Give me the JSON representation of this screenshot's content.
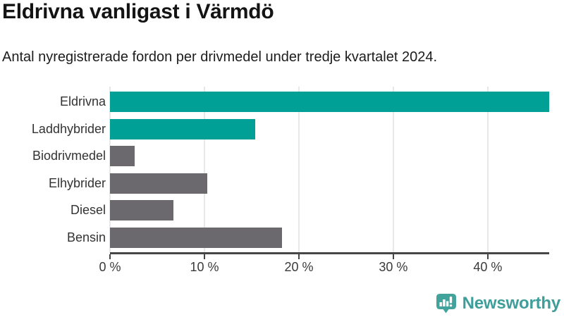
{
  "header": {
    "title": "Eldrivna vanligast i Värmdö",
    "subtitle": "Antal nyregistrerade fordon per drivmedel under tredje kvartalet 2024."
  },
  "chart_data": {
    "type": "bar",
    "orientation": "horizontal",
    "title": "Eldrivna vanligast i Värmdö",
    "subtitle": "Antal nyregistrerade fordon per drivmedel under tredje kvartalet 2024.",
    "categories": [
      "Eldrivna",
      "Laddhybrider",
      "Biodrivmedel",
      "Elhybrider",
      "Diesel",
      "Bensin"
    ],
    "values": [
      46.5,
      15.4,
      2.6,
      10.3,
      6.7,
      18.2
    ],
    "unit": "%",
    "xlim": [
      0,
      46.5
    ],
    "x_ticks": [
      0,
      10,
      20,
      30,
      40
    ],
    "x_tick_labels": [
      "0 %",
      "10 %",
      "20 %",
      "30 %",
      "40 %"
    ],
    "grid": true,
    "legend": "none",
    "bar_colors": [
      "#00a096",
      "#00a096",
      "#6c696e",
      "#6c696e",
      "#6c696e",
      "#6c696e"
    ],
    "highlight_color": "#00a096",
    "default_color": "#6c696e",
    "gridline_color": "#e8e8e8",
    "axis_color": "#464646"
  },
  "branding": {
    "logo_text": "Newsworthy",
    "logo_color": "#3f9e99",
    "logo_icon": "newsworthy-chart-bubble-icon"
  }
}
